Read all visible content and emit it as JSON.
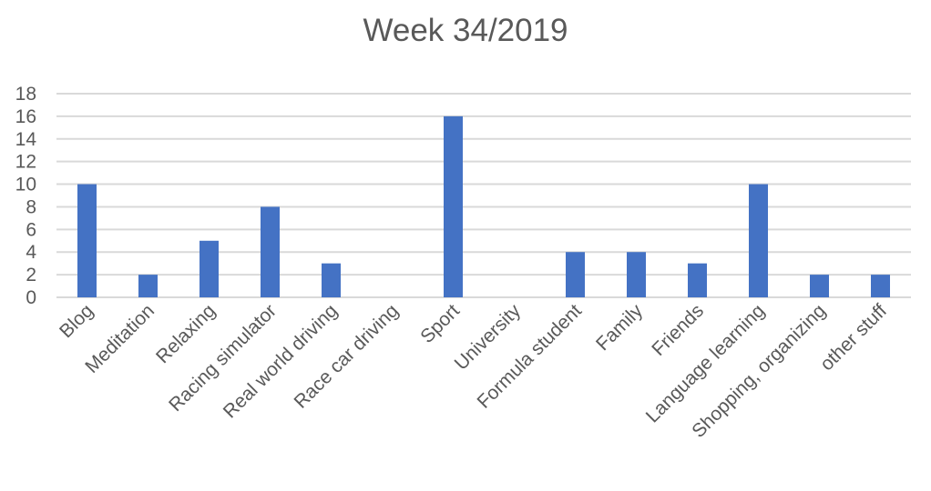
{
  "chart_data": {
    "type": "bar",
    "title": "Week 34/2019",
    "categories": [
      "Blog",
      "Meditation",
      "Relaxing",
      "Racing simulator",
      "Real world driving",
      "Race car driving",
      "Sport",
      "University",
      "Formula student",
      "Family",
      "Friends",
      "Language learning",
      "Shopping, organizing",
      "other stuff"
    ],
    "values": [
      10,
      2,
      5,
      8,
      3,
      0,
      16,
      0,
      4,
      4,
      3,
      10,
      2,
      2
    ],
    "ylim": [
      0,
      18
    ],
    "yticks": [
      "0",
      "2",
      "4",
      "6",
      "8",
      "10",
      "12",
      "14",
      "16",
      "18"
    ],
    "grid": true,
    "colors": {
      "bar": "#4472C4",
      "grid": "#D9D9D9",
      "text": "#595959"
    }
  }
}
